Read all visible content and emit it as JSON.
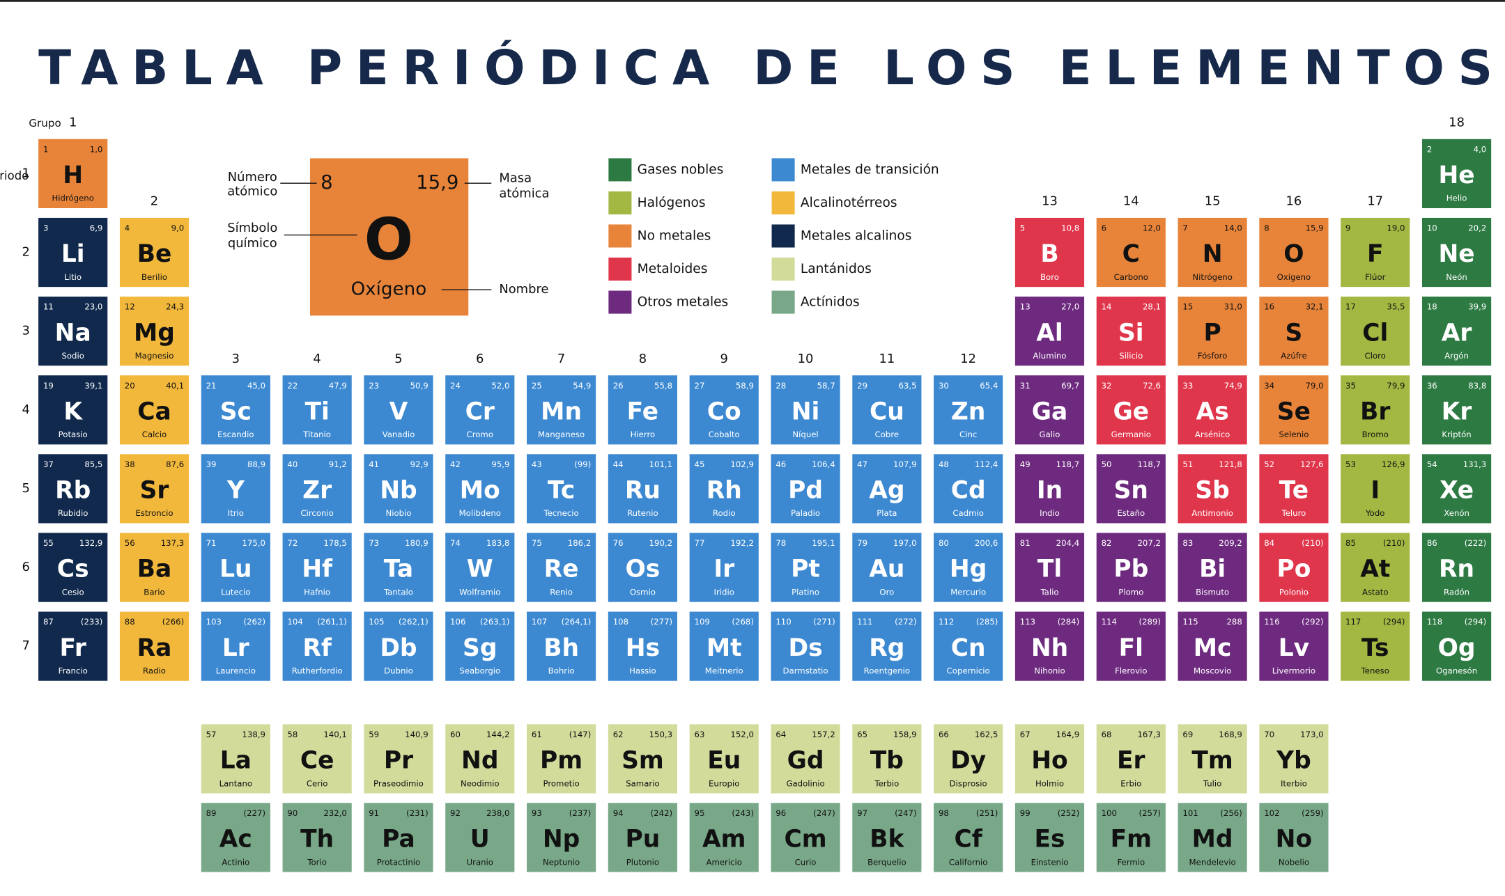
{
  "header": {
    "title": "TABLA PERIÓDICA DE LOS ELEMENTOS",
    "group_word": "Grupo",
    "period_word": "Periodo",
    "groups": [
      "1",
      "2",
      "3",
      "4",
      "5",
      "6",
      "7",
      "8",
      "9",
      "10",
      "11",
      "12",
      "13",
      "14",
      "15",
      "16",
      "17",
      "18"
    ],
    "periods": [
      "1",
      "2",
      "3",
      "4",
      "5",
      "6",
      "7"
    ]
  },
  "key": {
    "number": "8",
    "mass": "15,9",
    "symbol": "O",
    "name": "Oxígeno",
    "number_label": [
      "Número",
      "atómico"
    ],
    "mass_label": [
      "Masa",
      "atómica"
    ],
    "symbol_label": [
      "Símbolo",
      "químico"
    ],
    "name_label": "Nombre"
  },
  "legend": [
    {
      "label": "Gases nobles",
      "color": "#2d7a43",
      "text": "#ffffff"
    },
    {
      "label": "Halógenos",
      "color": "#a3b843",
      "text": "#111111"
    },
    {
      "label": "No metales",
      "color": "#e8843a",
      "text": "#111111"
    },
    {
      "label": "Metaloides",
      "color": "#e0364b",
      "text": "#ffffff"
    },
    {
      "label": "Otros metales",
      "color": "#6d2a7f",
      "text": "#ffffff"
    },
    {
      "label": "Metales de transición",
      "color": "#3c89d2",
      "text": "#ffffff"
    },
    {
      "label": "Alcalinotérreos",
      "color": "#f2b83c",
      "text": "#111111"
    },
    {
      "label": "Metales alcalinos",
      "color": "#10294c",
      "text": "#ffffff"
    },
    {
      "label": "Lantánidos",
      "color": "#d3db9b",
      "text": "#111111"
    },
    {
      "label": "Actínidos",
      "color": "#79a889",
      "text": "#111111"
    }
  ],
  "elements": [
    {
      "n": 1,
      "m": "1,0",
      "s": "H",
      "name": "Hidrógeno",
      "cat": 2
    },
    {
      "n": 2,
      "m": "4,0",
      "s": "He",
      "name": "Helio",
      "cat": 0
    },
    {
      "n": 3,
      "m": "6,9",
      "s": "Li",
      "name": "Litio",
      "cat": 7
    },
    {
      "n": 4,
      "m": "9,0",
      "s": "Be",
      "name": "Berilio",
      "cat": 6
    },
    {
      "n": 5,
      "m": "10,8",
      "s": "B",
      "name": "Boro",
      "cat": 3
    },
    {
      "n": 6,
      "m": "12,0",
      "s": "C",
      "name": "Carbono",
      "cat": 2
    },
    {
      "n": 7,
      "m": "14,0",
      "s": "N",
      "name": "Nitrógeno",
      "cat": 2
    },
    {
      "n": 8,
      "m": "15,9",
      "s": "O",
      "name": "Oxígeno",
      "cat": 2
    },
    {
      "n": 9,
      "m": "19,0",
      "s": "F",
      "name": "Flúor",
      "cat": 1
    },
    {
      "n": 10,
      "m": "20,2",
      "s": "Ne",
      "name": "Neón",
      "cat": 0
    },
    {
      "n": 11,
      "m": "23,0",
      "s": "Na",
      "name": "Sodio",
      "cat": 7
    },
    {
      "n": 12,
      "m": "24,3",
      "s": "Mg",
      "name": "Magnesio",
      "cat": 6
    },
    {
      "n": 13,
      "m": "27,0",
      "s": "Al",
      "name": "Alumino",
      "cat": 4
    },
    {
      "n": 14,
      "m": "28,1",
      "s": "Si",
      "name": "Silicio",
      "cat": 3
    },
    {
      "n": 15,
      "m": "31,0",
      "s": "P",
      "name": "Fósforo",
      "cat": 2
    },
    {
      "n": 16,
      "m": "32,1",
      "s": "S",
      "name": "Azúfre",
      "cat": 2
    },
    {
      "n": 17,
      "m": "35,5",
      "s": "Cl",
      "name": "Cloro",
      "cat": 1
    },
    {
      "n": 18,
      "m": "39,9",
      "s": "Ar",
      "name": "Argón",
      "cat": 0
    },
    {
      "n": 19,
      "m": "39,1",
      "s": "K",
      "name": "Potasio",
      "cat": 7
    },
    {
      "n": 20,
      "m": "40,1",
      "s": "Ca",
      "name": "Calcio",
      "cat": 6
    },
    {
      "n": 21,
      "m": "45,0",
      "s": "Sc",
      "name": "Escandio",
      "cat": 5
    },
    {
      "n": 22,
      "m": "47,9",
      "s": "Ti",
      "name": "Titanio",
      "cat": 5
    },
    {
      "n": 23,
      "m": "50,9",
      "s": "V",
      "name": "Vanadio",
      "cat": 5
    },
    {
      "n": 24,
      "m": "52,0",
      "s": "Cr",
      "name": "Cromo",
      "cat": 5
    },
    {
      "n": 25,
      "m": "54,9",
      "s": "Mn",
      "name": "Manganeso",
      "cat": 5
    },
    {
      "n": 26,
      "m": "55,8",
      "s": "Fe",
      "name": "Hierro",
      "cat": 5
    },
    {
      "n": 27,
      "m": "58,9",
      "s": "Co",
      "name": "Cobalto",
      "cat": 5
    },
    {
      "n": 28,
      "m": "58,7",
      "s": "Ni",
      "name": "Níquel",
      "cat": 5
    },
    {
      "n": 29,
      "m": "63,5",
      "s": "Cu",
      "name": "Cobre",
      "cat": 5
    },
    {
      "n": 30,
      "m": "65,4",
      "s": "Zn",
      "name": "Cinc",
      "cat": 5
    },
    {
      "n": 31,
      "m": "69,7",
      "s": "Ga",
      "name": "Galio",
      "cat": 4
    },
    {
      "n": 32,
      "m": "72,6",
      "s": "Ge",
      "name": "Germanio",
      "cat": 3
    },
    {
      "n": 33,
      "m": "74,9",
      "s": "As",
      "name": "Arsénico",
      "cat": 3
    },
    {
      "n": 34,
      "m": "79,0",
      "s": "Se",
      "name": "Selenio",
      "cat": 2
    },
    {
      "n": 35,
      "m": "79,9",
      "s": "Br",
      "name": "Bromo",
      "cat": 1
    },
    {
      "n": 36,
      "m": "83,8",
      "s": "Kr",
      "name": "Kriptón",
      "cat": 0
    },
    {
      "n": 37,
      "m": "85,5",
      "s": "Rb",
      "name": "Rubidio",
      "cat": 7
    },
    {
      "n": 38,
      "m": "87,6",
      "s": "Sr",
      "name": "Estroncio",
      "cat": 6
    },
    {
      "n": 39,
      "m": "88,9",
      "s": "Y",
      "name": "Itrio",
      "cat": 5
    },
    {
      "n": 40,
      "m": "91,2",
      "s": "Zr",
      "name": "Circonio",
      "cat": 5
    },
    {
      "n": 41,
      "m": "92,9",
      "s": "Nb",
      "name": "Niobio",
      "cat": 5
    },
    {
      "n": 42,
      "m": "95,9",
      "s": "Mo",
      "name": "Molibdeno",
      "cat": 5
    },
    {
      "n": 43,
      "m": "(99)",
      "s": "Tc",
      "name": "Tecnecio",
      "cat": 5
    },
    {
      "n": 44,
      "m": "101,1",
      "s": "Ru",
      "name": "Rutenio",
      "cat": 5
    },
    {
      "n": 45,
      "m": "102,9",
      "s": "Rh",
      "name": "Rodio",
      "cat": 5
    },
    {
      "n": 46,
      "m": "106,4",
      "s": "Pd",
      "name": "Paladio",
      "cat": 5
    },
    {
      "n": 47,
      "m": "107,9",
      "s": "Ag",
      "name": "Plata",
      "cat": 5
    },
    {
      "n": 48,
      "m": "112,4",
      "s": "Cd",
      "name": "Cadmio",
      "cat": 5
    },
    {
      "n": 49,
      "m": "118,7",
      "s": "In",
      "name": "Indio",
      "cat": 4
    },
    {
      "n": 50,
      "m": "118,7",
      "s": "Sn",
      "name": "Estaño",
      "cat": 4
    },
    {
      "n": 51,
      "m": "121,8",
      "s": "Sb",
      "name": "Antimonio",
      "cat": 3
    },
    {
      "n": 52,
      "m": "127,6",
      "s": "Te",
      "name": "Teluro",
      "cat": 3
    },
    {
      "n": 53,
      "m": "126,9",
      "s": "I",
      "name": "Yodo",
      "cat": 1
    },
    {
      "n": 54,
      "m": "131,3",
      "s": "Xe",
      "name": "Xenón",
      "cat": 0
    },
    {
      "n": 55,
      "m": "132,9",
      "s": "Cs",
      "name": "Cesio",
      "cat": 7
    },
    {
      "n": 56,
      "m": "137,3",
      "s": "Ba",
      "name": "Bario",
      "cat": 6
    },
    {
      "n": 57,
      "m": "138,9",
      "s": "La",
      "name": "Lantano",
      "cat": 8
    },
    {
      "n": 58,
      "m": "140,1",
      "s": "Ce",
      "name": "Cerio",
      "cat": 8
    },
    {
      "n": 59,
      "m": "140,9",
      "s": "Pr",
      "name": "Praseodimio",
      "cat": 8
    },
    {
      "n": 60,
      "m": "144,2",
      "s": "Nd",
      "name": "Neodimio",
      "cat": 8
    },
    {
      "n": 61,
      "m": "(147)",
      "s": "Pm",
      "name": "Prometio",
      "cat": 8
    },
    {
      "n": 62,
      "m": "150,3",
      "s": "Sm",
      "name": "Samario",
      "cat": 8
    },
    {
      "n": 63,
      "m": "152,0",
      "s": "Eu",
      "name": "Europio",
      "cat": 8
    },
    {
      "n": 64,
      "m": "157,2",
      "s": "Gd",
      "name": "Gadolinio",
      "cat": 8
    },
    {
      "n": 65,
      "m": "158,9",
      "s": "Tb",
      "name": "Terbio",
      "cat": 8
    },
    {
      "n": 66,
      "m": "162,5",
      "s": "Dy",
      "name": "Disprosio",
      "cat": 8
    },
    {
      "n": 67,
      "m": "164,9",
      "s": "Ho",
      "name": "Holmio",
      "cat": 8
    },
    {
      "n": 68,
      "m": "167,3",
      "s": "Er",
      "name": "Erbio",
      "cat": 8
    },
    {
      "n": 69,
      "m": "168,9",
      "s": "Tm",
      "name": "Tulio",
      "cat": 8
    },
    {
      "n": 70,
      "m": "173,0",
      "s": "Yb",
      "name": "Iterbio",
      "cat": 8
    },
    {
      "n": 71,
      "m": "175,0",
      "s": "Lu",
      "name": "Lutecio",
      "cat": 5
    },
    {
      "n": 72,
      "m": "178,5",
      "s": "Hf",
      "name": "Hafnio",
      "cat": 5
    },
    {
      "n": 73,
      "m": "180,9",
      "s": "Ta",
      "name": "Tantalo",
      "cat": 5
    },
    {
      "n": 74,
      "m": "183,8",
      "s": "W",
      "name": "Wolframio",
      "cat": 5
    },
    {
      "n": 75,
      "m": "186,2",
      "s": "Re",
      "name": "Renio",
      "cat": 5
    },
    {
      "n": 76,
      "m": "190,2",
      "s": "Os",
      "name": "Osmio",
      "cat": 5
    },
    {
      "n": 77,
      "m": "192,2",
      "s": "Ir",
      "name": "Iridio",
      "cat": 5
    },
    {
      "n": 78,
      "m": "195,1",
      "s": "Pt",
      "name": "Platino",
      "cat": 5
    },
    {
      "n": 79,
      "m": "197,0",
      "s": "Au",
      "name": "Oro",
      "cat": 5
    },
    {
      "n": 80,
      "m": "200,6",
      "s": "Hg",
      "name": "Mercurio",
      "cat": 5
    },
    {
      "n": 81,
      "m": "204,4",
      "s": "Tl",
      "name": "Talio",
      "cat": 4
    },
    {
      "n": 82,
      "m": "207,2",
      "s": "Pb",
      "name": "Plomo",
      "cat": 4
    },
    {
      "n": 83,
      "m": "209,2",
      "s": "Bi",
      "name": "Bismuto",
      "cat": 4
    },
    {
      "n": 84,
      "m": "(210)",
      "s": "Po",
      "name": "Polonio",
      "cat": 3
    },
    {
      "n": 85,
      "m": "(210)",
      "s": "At",
      "name": "Astato",
      "cat": 1
    },
    {
      "n": 86,
      "m": "(222)",
      "s": "Rn",
      "name": "Radón",
      "cat": 0
    },
    {
      "n": 87,
      "m": "(233)",
      "s": "Fr",
      "name": "Francio",
      "cat": 7
    },
    {
      "n": 88,
      "m": "(266)",
      "s": "Ra",
      "name": "Radio",
      "cat": 6
    },
    {
      "n": 89,
      "m": "(227)",
      "s": "Ac",
      "name": "Actinio",
      "cat": 9
    },
    {
      "n": 90,
      "m": "232,0",
      "s": "Th",
      "name": "Torio",
      "cat": 9
    },
    {
      "n": 91,
      "m": "(231)",
      "s": "Pa",
      "name": "Protactinio",
      "cat": 9
    },
    {
      "n": 92,
      "m": "238,0",
      "s": "U",
      "name": "Uranio",
      "cat": 9
    },
    {
      "n": 93,
      "m": "(237)",
      "s": "Np",
      "name": "Neptunio",
      "cat": 9
    },
    {
      "n": 94,
      "m": "(242)",
      "s": "Pu",
      "name": "Plutonio",
      "cat": 9
    },
    {
      "n": 95,
      "m": "(243)",
      "s": "Am",
      "name": "Americio",
      "cat": 9
    },
    {
      "n": 96,
      "m": "(247)",
      "s": "Cm",
      "name": "Curio",
      "cat": 9
    },
    {
      "n": 97,
      "m": "(247)",
      "s": "Bk",
      "name": "Berquelio",
      "cat": 9
    },
    {
      "n": 98,
      "m": "(251)",
      "s": "Cf",
      "name": "Californio",
      "cat": 9
    },
    {
      "n": 99,
      "m": "(252)",
      "s": "Es",
      "name": "Einstenio",
      "cat": 9
    },
    {
      "n": 100,
      "m": "(257)",
      "s": "Fm",
      "name": "Fermio",
      "cat": 9
    },
    {
      "n": 101,
      "m": "(256)",
      "s": "Md",
      "name": "Mendelevio",
      "cat": 9
    },
    {
      "n": 102,
      "m": "(259)",
      "s": "No",
      "name": "Nobelio",
      "cat": 9
    },
    {
      "n": 103,
      "m": "(262)",
      "s": "Lr",
      "name": "Laurencio",
      "cat": 5
    },
    {
      "n": 104,
      "m": "(261,1)",
      "s": "Rf",
      "name": "Rutherfordio",
      "cat": 5
    },
    {
      "n": 105,
      "m": "(262,1)",
      "s": "Db",
      "name": "Dubnio",
      "cat": 5
    },
    {
      "n": 106,
      "m": "(263,1)",
      "s": "Sg",
      "name": "Seaborgio",
      "cat": 5
    },
    {
      "n": 107,
      "m": "(264,1)",
      "s": "Bh",
      "name": "Bohrio",
      "cat": 5
    },
    {
      "n": 108,
      "m": "(277)",
      "s": "Hs",
      "name": "Hassio",
      "cat": 5
    },
    {
      "n": 109,
      "m": "(268)",
      "s": "Mt",
      "name": "Meitnerio",
      "cat": 5
    },
    {
      "n": 110,
      "m": "(271)",
      "s": "Ds",
      "name": "Darmstatio",
      "cat": 5
    },
    {
      "n": 111,
      "m": "(272)",
      "s": "Rg",
      "name": "Roentgenio",
      "cat": 5
    },
    {
      "n": 112,
      "m": "(285)",
      "s": "Cn",
      "name": "Copernicio",
      "cat": 5
    },
    {
      "n": 113,
      "m": "(284)",
      "s": "Nh",
      "name": "Nihonio",
      "cat": 4
    },
    {
      "n": 114,
      "m": "(289)",
      "s": "Fl",
      "name": "Flerovio",
      "cat": 4
    },
    {
      "n": 115,
      "m": "288",
      "s": "Mc",
      "name": "Moscovio",
      "cat": 4
    },
    {
      "n": 116,
      "m": "(292)",
      "s": "Lv",
      "name": "Livermorio",
      "cat": 4
    },
    {
      "n": 117,
      "m": "(294)",
      "s": "Ts",
      "name": "Teneso",
      "cat": 1
    },
    {
      "n": 118,
      "m": "(294)",
      "s": "Og",
      "name": "Oganesón",
      "cat": 0
    }
  ]
}
